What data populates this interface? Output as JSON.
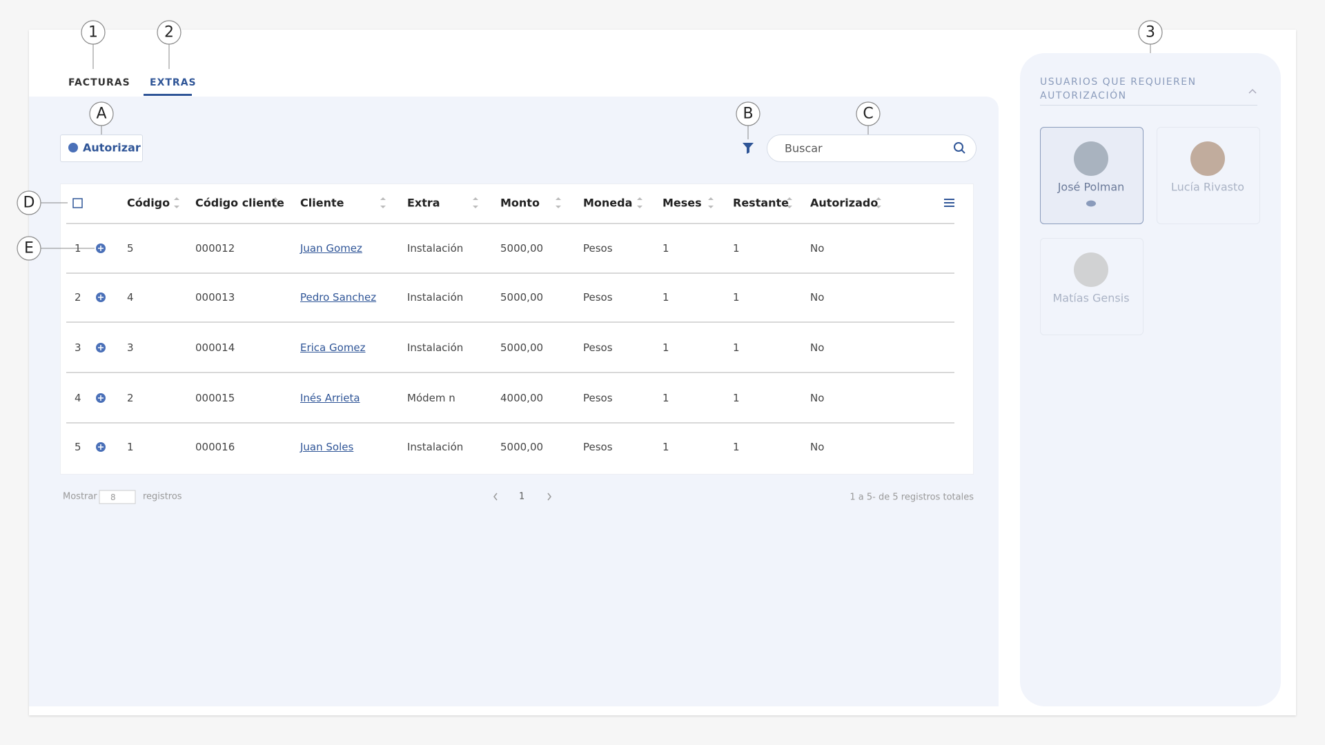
{
  "callouts": [
    "1",
    "2",
    "3",
    "A",
    "B",
    "C",
    "D",
    "E"
  ],
  "tabs": [
    "FACTURAS",
    "EXTRAS"
  ],
  "toolbar": {
    "authorize": "Autorizar",
    "search_placeholder": "Buscar"
  },
  "table": {
    "columns": [
      "Código",
      "Código cliente",
      "Cliente",
      "Extra",
      "Monto",
      "Moneda",
      "Meses",
      "Restante",
      "Autorizado"
    ],
    "rows": [
      [
        "1",
        "5",
        "000012",
        "Juan Gomez",
        "Instalación",
        "5000,00",
        "Pesos",
        "1",
        "1",
        "No"
      ],
      [
        "2",
        "4",
        "000013",
        "Pedro Sanchez",
        "Instalación",
        "5000,00",
        "Pesos",
        "1",
        "1",
        "No"
      ],
      [
        "3",
        "3",
        "000014",
        "Erica Gomez",
        "Instalación",
        "5000,00",
        "Pesos",
        "1",
        "1",
        "No"
      ],
      [
        "4",
        "2",
        "000015",
        "Inés Arrieta",
        "Módem n",
        "4000,00",
        "Pesos",
        "1",
        "1",
        "No"
      ],
      [
        "5",
        "1",
        "000016",
        "Juan Soles",
        "Instalación",
        "5000,00",
        "Pesos",
        "1",
        "1",
        "No"
      ]
    ]
  },
  "pagination": {
    "show": "Mostrar",
    "page_size": "8",
    "records": "registros",
    "page": "1",
    "summary": "1 a 5- de 5 registros totales"
  },
  "sidebar": {
    "title": "USUARIOS QUE REQUIEREN AUTORIZACIÓN",
    "users": [
      "José Polman",
      "Lucía Rivasto",
      "Matías Gensis"
    ]
  }
}
